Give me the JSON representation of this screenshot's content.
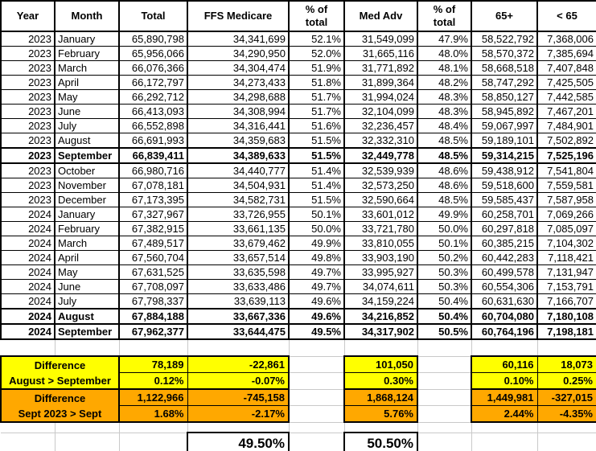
{
  "colors": {
    "yellow": "#FFFF00",
    "orange": "#FFA800",
    "gridline": "#C9C9C9",
    "border": "#000000"
  },
  "table": {
    "columns": [
      "Year",
      "Month",
      "Total",
      "FFS Medicare",
      "% of\ntotal",
      "Med Adv",
      "% of\ntotal",
      "65+",
      "< 65"
    ],
    "rows": [
      {
        "year": "2023",
        "month": "January",
        "total": "65,890,798",
        "ffs": "34,341,699",
        "ffs_pct": "52.1%",
        "medadv": "31,549,099",
        "medadv_pct": "47.9%",
        "over65": "58,522,792",
        "under65": "7,368,006",
        "bold": false
      },
      {
        "year": "2023",
        "month": "February",
        "total": "65,956,066",
        "ffs": "34,290,950",
        "ffs_pct": "52.0%",
        "medadv": "31,665,116",
        "medadv_pct": "48.0%",
        "over65": "58,570,372",
        "under65": "7,385,694",
        "bold": false
      },
      {
        "year": "2023",
        "month": "March",
        "total": "66,076,366",
        "ffs": "34,304,474",
        "ffs_pct": "51.9%",
        "medadv": "31,771,892",
        "medadv_pct": "48.1%",
        "over65": "58,668,518",
        "under65": "7,407,848",
        "bold": false
      },
      {
        "year": "2023",
        "month": "April",
        "total": "66,172,797",
        "ffs": "34,273,433",
        "ffs_pct": "51.8%",
        "medadv": "31,899,364",
        "medadv_pct": "48.2%",
        "over65": "58,747,292",
        "under65": "7,425,505",
        "bold": false
      },
      {
        "year": "2023",
        "month": "May",
        "total": "66,292,712",
        "ffs": "34,298,688",
        "ffs_pct": "51.7%",
        "medadv": "31,994,024",
        "medadv_pct": "48.3%",
        "over65": "58,850,127",
        "under65": "7,442,585",
        "bold": false
      },
      {
        "year": "2023",
        "month": "June",
        "total": "66,413,093",
        "ffs": "34,308,994",
        "ffs_pct": "51.7%",
        "medadv": "32,104,099",
        "medadv_pct": "48.3%",
        "over65": "58,945,892",
        "under65": "7,467,201",
        "bold": false
      },
      {
        "year": "2023",
        "month": "July",
        "total": "66,552,898",
        "ffs": "34,316,441",
        "ffs_pct": "51.6%",
        "medadv": "32,236,457",
        "medadv_pct": "48.4%",
        "over65": "59,067,997",
        "under65": "7,484,901",
        "bold": false
      },
      {
        "year": "2023",
        "month": "August",
        "total": "66,691,993",
        "ffs": "34,359,683",
        "ffs_pct": "51.5%",
        "medadv": "32,332,310",
        "medadv_pct": "48.5%",
        "over65": "59,189,101",
        "under65": "7,502,892",
        "bold": false
      },
      {
        "year": "2023",
        "month": "September",
        "total": "66,839,411",
        "ffs": "34,389,633",
        "ffs_pct": "51.5%",
        "medadv": "32,449,778",
        "medadv_pct": "48.5%",
        "over65": "59,314,215",
        "under65": "7,525,196",
        "bold": true
      },
      {
        "year": "2023",
        "month": "October",
        "total": "66,980,716",
        "ffs": "34,440,777",
        "ffs_pct": "51.4%",
        "medadv": "32,539,939",
        "medadv_pct": "48.6%",
        "over65": "59,438,912",
        "under65": "7,541,804",
        "bold": false
      },
      {
        "year": "2023",
        "month": "November",
        "total": "67,078,181",
        "ffs": "34,504,931",
        "ffs_pct": "51.4%",
        "medadv": "32,573,250",
        "medadv_pct": "48.6%",
        "over65": "59,518,600",
        "under65": "7,559,581",
        "bold": false
      },
      {
        "year": "2023",
        "month": "December",
        "total": "67,173,395",
        "ffs": "34,582,731",
        "ffs_pct": "51.5%",
        "medadv": "32,590,664",
        "medadv_pct": "48.5%",
        "over65": "59,585,437",
        "under65": "7,587,958",
        "bold": false
      },
      {
        "year": "2024",
        "month": "January",
        "total": "67,327,967",
        "ffs": "33,726,955",
        "ffs_pct": "50.1%",
        "medadv": "33,601,012",
        "medadv_pct": "49.9%",
        "over65": "60,258,701",
        "under65": "7,069,266",
        "bold": false
      },
      {
        "year": "2024",
        "month": "February",
        "total": "67,382,915",
        "ffs": "33,661,135",
        "ffs_pct": "50.0%",
        "medadv": "33,721,780",
        "medadv_pct": "50.0%",
        "over65": "60,297,818",
        "under65": "7,085,097",
        "bold": false
      },
      {
        "year": "2024",
        "month": "March",
        "total": "67,489,517",
        "ffs": "33,679,462",
        "ffs_pct": "49.9%",
        "medadv": "33,810,055",
        "medadv_pct": "50.1%",
        "over65": "60,385,215",
        "under65": "7,104,302",
        "bold": false
      },
      {
        "year": "2024",
        "month": "April",
        "total": "67,560,704",
        "ffs": "33,657,514",
        "ffs_pct": "49.8%",
        "medadv": "33,903,190",
        "medadv_pct": "50.2%",
        "over65": "60,442,283",
        "under65": "7,118,421",
        "bold": false
      },
      {
        "year": "2024",
        "month": "May",
        "total": "67,631,525",
        "ffs": "33,635,598",
        "ffs_pct": "49.7%",
        "medadv": "33,995,927",
        "medadv_pct": "50.3%",
        "over65": "60,499,578",
        "under65": "7,131,947",
        "bold": false
      },
      {
        "year": "2024",
        "month": "June",
        "total": "67,708,097",
        "ffs": "33,633,486",
        "ffs_pct": "49.7%",
        "medadv": "34,074,611",
        "medadv_pct": "50.3%",
        "over65": "60,554,306",
        "under65": "7,153,791",
        "bold": false
      },
      {
        "year": "2024",
        "month": "July",
        "total": "67,798,337",
        "ffs": "33,639,113",
        "ffs_pct": "49.6%",
        "medadv": "34,159,224",
        "medadv_pct": "50.4%",
        "over65": "60,631,630",
        "under65": "7,166,707",
        "bold": false
      },
      {
        "year": "2024",
        "month": "August",
        "total": "67,884,188",
        "ffs": "33,667,336",
        "ffs_pct": "49.6%",
        "medadv": "34,216,852",
        "medadv_pct": "50.4%",
        "over65": "60,704,080",
        "under65": "7,180,108",
        "bold": true
      },
      {
        "year": "2024",
        "month": "September",
        "total": "67,962,377",
        "ffs": "33,644,475",
        "ffs_pct": "49.5%",
        "medadv": "34,317,902",
        "medadv_pct": "50.5%",
        "over65": "60,764,196",
        "under65": "7,198,181",
        "bold": true
      }
    ]
  },
  "summary": {
    "block1": {
      "label_line1": "Difference",
      "label_line2": "August > September",
      "abs": {
        "total": "78,189",
        "ffs": "-22,861",
        "medadv": "101,050",
        "over65": "60,116",
        "under65": "18,073"
      },
      "pct": {
        "total": "0.12%",
        "ffs": "-0.07%",
        "medadv": "0.30%",
        "over65": "0.10%",
        "under65": "0.25%"
      }
    },
    "block2": {
      "label_line1": "Difference",
      "label_line2": "Sept 2023 > Sept",
      "abs": {
        "total": "1,122,966",
        "ffs": "-745,158",
        "medadv": "1,868,124",
        "over65": "1,449,981",
        "under65": "-327,015"
      },
      "pct": {
        "total": "1.68%",
        "ffs": "-2.17%",
        "medadv": "5.76%",
        "over65": "2.44%",
        "under65": "-4.35%"
      }
    }
  },
  "footer": {
    "ffs_share": "49.50%",
    "medadv_share": "50.50%"
  }
}
